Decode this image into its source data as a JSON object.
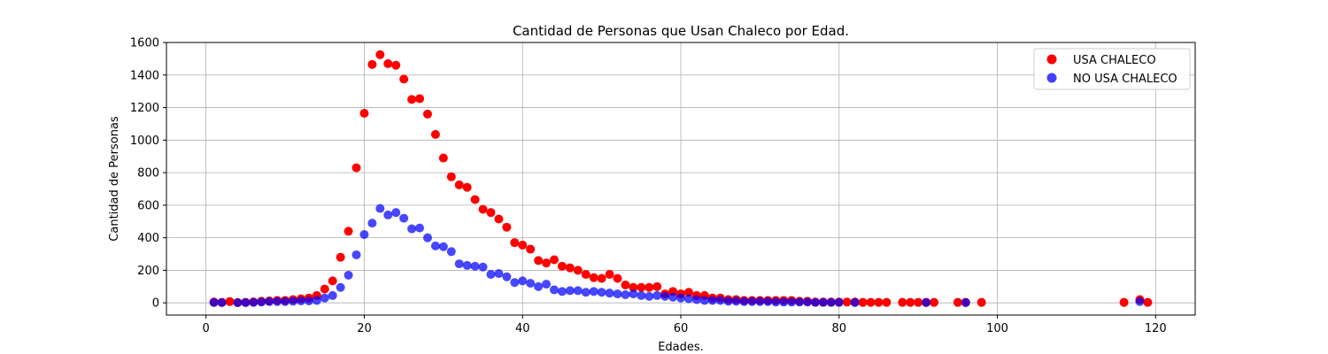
{
  "chart_data": {
    "type": "scatter",
    "title": "Cantidad de Personas que Usan Chaleco por Edad.",
    "xlabel": "Edades.",
    "ylabel": "Cantidad de Personas",
    "xlim": [
      -5,
      125
    ],
    "ylim": [
      -75,
      1600
    ],
    "xticks": [
      0,
      20,
      40,
      60,
      80,
      100,
      120
    ],
    "yticks": [
      0,
      200,
      400,
      600,
      800,
      1000,
      1200,
      1400,
      1600
    ],
    "grid": true,
    "legend_position": "top-right",
    "series": [
      {
        "name": "USA CHALECO",
        "color": "#ff0000",
        "points": [
          [
            1,
            5
          ],
          [
            2,
            3
          ],
          [
            3,
            8
          ],
          [
            4,
            2
          ],
          [
            5,
            3
          ],
          [
            6,
            6
          ],
          [
            7,
            10
          ],
          [
            8,
            12
          ],
          [
            9,
            15
          ],
          [
            10,
            15
          ],
          [
            11,
            20
          ],
          [
            12,
            25
          ],
          [
            13,
            30
          ],
          [
            14,
            45
          ],
          [
            15,
            85
          ],
          [
            16,
            135
          ],
          [
            17,
            280
          ],
          [
            18,
            440
          ],
          [
            19,
            830
          ],
          [
            20,
            1165
          ],
          [
            21,
            1465
          ],
          [
            22,
            1525
          ],
          [
            23,
            1470
          ],
          [
            24,
            1460
          ],
          [
            25,
            1375
          ],
          [
            26,
            1250
          ],
          [
            27,
            1255
          ],
          [
            28,
            1160
          ],
          [
            29,
            1035
          ],
          [
            30,
            890
          ],
          [
            31,
            775
          ],
          [
            32,
            725
          ],
          [
            33,
            710
          ],
          [
            34,
            635
          ],
          [
            35,
            575
          ],
          [
            36,
            555
          ],
          [
            37,
            515
          ],
          [
            38,
            465
          ],
          [
            39,
            370
          ],
          [
            40,
            355
          ],
          [
            41,
            330
          ],
          [
            42,
            260
          ],
          [
            43,
            245
          ],
          [
            44,
            265
          ],
          [
            45,
            225
          ],
          [
            46,
            215
          ],
          [
            47,
            200
          ],
          [
            48,
            175
          ],
          [
            49,
            155
          ],
          [
            50,
            150
          ],
          [
            51,
            175
          ],
          [
            52,
            150
          ],
          [
            53,
            110
          ],
          [
            54,
            95
          ],
          [
            55,
            95
          ],
          [
            56,
            95
          ],
          [
            57,
            100
          ],
          [
            58,
            55
          ],
          [
            59,
            70
          ],
          [
            60,
            55
          ],
          [
            61,
            65
          ],
          [
            62,
            45
          ],
          [
            63,
            45
          ],
          [
            64,
            30
          ],
          [
            65,
            30
          ],
          [
            66,
            20
          ],
          [
            67,
            20
          ],
          [
            68,
            15
          ],
          [
            69,
            15
          ],
          [
            70,
            15
          ],
          [
            71,
            15
          ],
          [
            72,
            15
          ],
          [
            73,
            15
          ],
          [
            74,
            15
          ],
          [
            75,
            10
          ],
          [
            76,
            10
          ],
          [
            77,
            5
          ],
          [
            78,
            5
          ],
          [
            79,
            5
          ],
          [
            80,
            5
          ],
          [
            81,
            5
          ],
          [
            82,
            5
          ],
          [
            83,
            3
          ],
          [
            84,
            3
          ],
          [
            85,
            3
          ],
          [
            86,
            3
          ],
          [
            88,
            3
          ],
          [
            89,
            3
          ],
          [
            90,
            3
          ],
          [
            91,
            3
          ],
          [
            92,
            3
          ],
          [
            95,
            3
          ],
          [
            96,
            3
          ],
          [
            98,
            3
          ],
          [
            116,
            3
          ],
          [
            118,
            20
          ],
          [
            119,
            3
          ]
        ]
      },
      {
        "name": "NO USA CHALECO",
        "color": "#0000ff",
        "points": [
          [
            1,
            2
          ],
          [
            2,
            2
          ],
          [
            4,
            1
          ],
          [
            5,
            2
          ],
          [
            6,
            3
          ],
          [
            7,
            5
          ],
          [
            8,
            8
          ],
          [
            9,
            8
          ],
          [
            10,
            8
          ],
          [
            11,
            10
          ],
          [
            12,
            12
          ],
          [
            13,
            12
          ],
          [
            14,
            15
          ],
          [
            15,
            30
          ],
          [
            16,
            45
          ],
          [
            17,
            95
          ],
          [
            18,
            170
          ],
          [
            19,
            295
          ],
          [
            20,
            420
          ],
          [
            21,
            490
          ],
          [
            22,
            580
          ],
          [
            23,
            540
          ],
          [
            24,
            555
          ],
          [
            25,
            520
          ],
          [
            26,
            455
          ],
          [
            27,
            460
          ],
          [
            28,
            400
          ],
          [
            29,
            350
          ],
          [
            30,
            345
          ],
          [
            31,
            315
          ],
          [
            32,
            240
          ],
          [
            33,
            230
          ],
          [
            34,
            225
          ],
          [
            35,
            220
          ],
          [
            36,
            175
          ],
          [
            37,
            180
          ],
          [
            38,
            160
          ],
          [
            39,
            125
          ],
          [
            40,
            135
          ],
          [
            41,
            120
          ],
          [
            42,
            100
          ],
          [
            43,
            115
          ],
          [
            44,
            80
          ],
          [
            45,
            70
          ],
          [
            46,
            75
          ],
          [
            47,
            75
          ],
          [
            48,
            65
          ],
          [
            49,
            70
          ],
          [
            50,
            65
          ],
          [
            51,
            60
          ],
          [
            52,
            55
          ],
          [
            53,
            50
          ],
          [
            54,
            55
          ],
          [
            55,
            45
          ],
          [
            56,
            40
          ],
          [
            57,
            45
          ],
          [
            58,
            40
          ],
          [
            59,
            35
          ],
          [
            60,
            30
          ],
          [
            61,
            25
          ],
          [
            62,
            20
          ],
          [
            63,
            15
          ],
          [
            64,
            15
          ],
          [
            65,
            15
          ],
          [
            66,
            10
          ],
          [
            67,
            10
          ],
          [
            68,
            8
          ],
          [
            69,
            8
          ],
          [
            70,
            8
          ],
          [
            71,
            8
          ],
          [
            72,
            5
          ],
          [
            73,
            5
          ],
          [
            74,
            5
          ],
          [
            75,
            5
          ],
          [
            76,
            5
          ],
          [
            77,
            3
          ],
          [
            78,
            3
          ],
          [
            79,
            3
          ],
          [
            80,
            3
          ],
          [
            82,
            2
          ],
          [
            91,
            2
          ],
          [
            96,
            2
          ],
          [
            118,
            8
          ]
        ]
      }
    ]
  }
}
